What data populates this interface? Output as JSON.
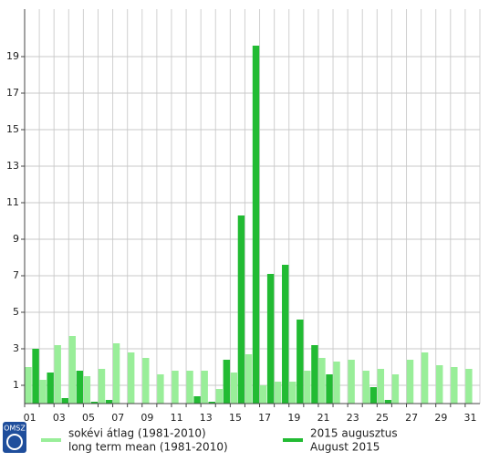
{
  "chart_data": {
    "type": "bar",
    "logo": "OMSZ",
    "categories": [
      "01",
      null,
      "03",
      null,
      "05",
      null,
      "07",
      null,
      "09",
      null,
      "11",
      null,
      "13",
      null,
      "15",
      null,
      "17",
      null,
      "19",
      null,
      "21",
      null,
      "23",
      null,
      "25",
      null,
      "27",
      null,
      "29",
      null,
      "31"
    ],
    "series": [
      {
        "name": "sokévi átlag (1981-2010)",
        "name_en": "long term mean (1981-2010)",
        "color": "#99ee99",
        "values": [
          2.0,
          1.3,
          3.2,
          3.7,
          1.5,
          1.9,
          3.3,
          2.8,
          2.5,
          1.6,
          1.8,
          1.8,
          1.8,
          0.8,
          1.7,
          2.7,
          1.0,
          1.2,
          1.2,
          1.8,
          2.5,
          2.3,
          2.4,
          1.8,
          1.9,
          1.6,
          2.4,
          2.8,
          2.1,
          2.0,
          1.9
        ]
      },
      {
        "name": "2015 augusztus",
        "name_en": "August 2015",
        "color": "#22bb33",
        "values": [
          3.0,
          1.7,
          0.3,
          1.8,
          0.1,
          0.2,
          0,
          0,
          0,
          0,
          0,
          0.4,
          0.1,
          2.4,
          10.3,
          19.6,
          7.1,
          7.6,
          4.6,
          3.2,
          1.6,
          0,
          0,
          0.9,
          0.2,
          0,
          0,
          0,
          0,
          0,
          0
        ]
      }
    ],
    "ylim": [
      0,
      21.6
    ],
    "yticks": [
      1,
      3,
      5,
      7,
      9,
      11,
      13,
      15,
      17,
      19
    ],
    "grid": true
  }
}
